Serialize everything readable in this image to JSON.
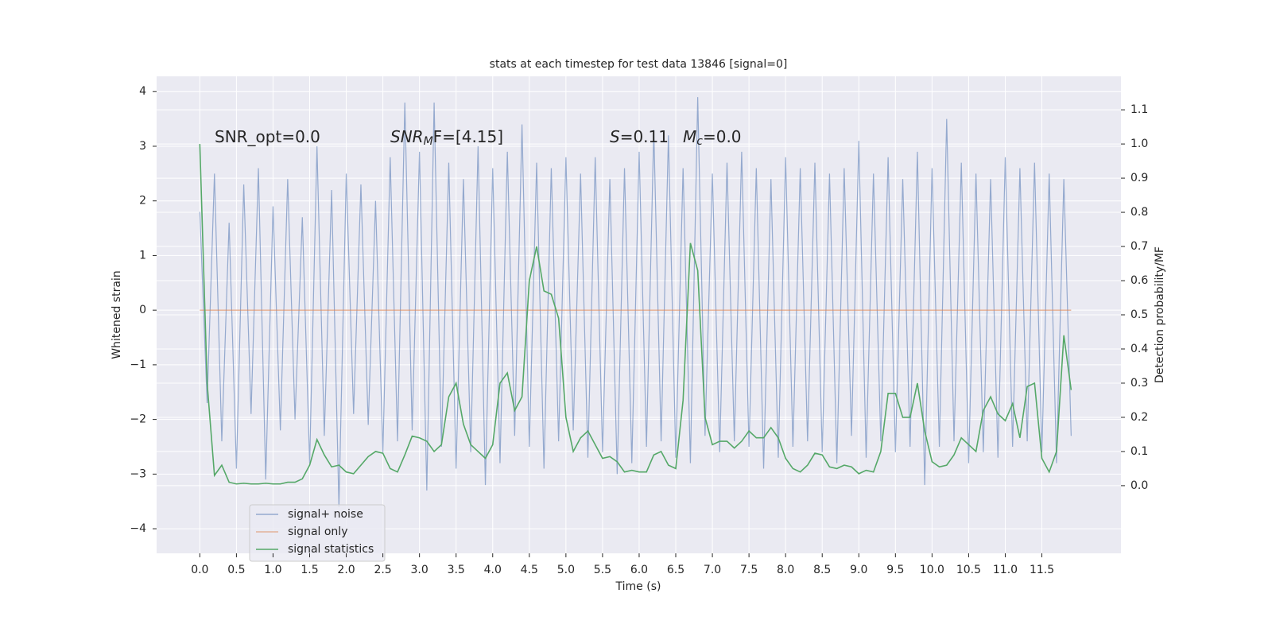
{
  "chart_data": {
    "type": "line",
    "title": "stats at each timestep for test data 13846 [signal=0]",
    "xlabel": "Time (s)",
    "ylabel": "Whitened strain",
    "y2label": "Detection probability/MF",
    "annotations": [
      [
        "SNR_opt=0.0"
      ],
      [
        "SNR",
        "M",
        "F=[4.15]"
      ],
      [
        "S",
        "=0.11"
      ],
      [
        "M",
        "c",
        "=0.0"
      ]
    ],
    "xlim": [
      -0.59,
      12.58
    ],
    "ylim": [
      -4.45,
      4.28
    ],
    "y2lim": [
      -0.198,
      1.198
    ],
    "xticks": [
      {
        "value": 0,
        "label": "0.0"
      },
      0.5,
      {
        "value": 1,
        "label": "1.0"
      },
      1.5,
      {
        "value": 2,
        "label": "2.0"
      },
      2.5,
      {
        "value": 3,
        "label": "3.0"
      },
      3.5,
      {
        "value": 4,
        "label": "4.0"
      },
      4.5,
      {
        "value": 5,
        "label": "5.0"
      },
      5.5,
      {
        "value": 6,
        "label": "6.0"
      },
      6.5,
      {
        "value": 7,
        "label": "7.0"
      },
      7.5,
      {
        "value": 8,
        "label": "8.0"
      },
      8.5,
      {
        "value": 9,
        "label": "9.0"
      },
      9.5,
      {
        "value": 10,
        "label": "10.0"
      },
      10.5,
      {
        "value": 11,
        "label": "11.0"
      },
      11.5
    ],
    "yticks": [
      {
        "value": -4,
        "label": "−4"
      },
      {
        "value": -3,
        "label": "−3"
      },
      {
        "value": -2,
        "label": "−2"
      },
      {
        "value": -1,
        "label": "−1"
      },
      0,
      1,
      2,
      3,
      4
    ],
    "y2ticks": [
      {
        "value": 0,
        "label": "0.0"
      },
      0.1,
      0.2,
      0.3,
      0.4,
      0.5,
      0.6,
      0.7,
      0.8,
      0.9,
      {
        "value": 1,
        "label": "1.0"
      },
      1.1
    ],
    "grid": true,
    "legend": "lower left",
    "x": [
      0,
      0.1,
      0.2,
      0.3,
      0.4,
      0.5,
      0.6,
      0.7,
      0.8,
      0.9,
      1,
      1.1,
      1.2,
      1.3,
      1.4,
      1.5,
      1.6,
      1.7,
      1.8,
      1.9,
      2,
      2.1,
      2.2,
      2.3,
      2.4,
      2.5,
      2.6,
      2.7,
      2.8,
      2.9,
      3,
      3.1,
      3.2,
      3.3,
      3.4,
      3.5,
      3.6,
      3.7,
      3.8,
      3.9,
      4,
      4.1,
      4.2,
      4.3,
      4.4,
      4.5,
      4.6,
      4.7,
      4.8,
      4.9,
      5,
      5.1,
      5.2,
      5.3,
      5.4,
      5.5,
      5.6,
      5.7,
      5.8,
      5.9,
      6,
      6.1,
      6.2,
      6.3,
      6.4,
      6.5,
      6.6,
      6.7,
      6.8,
      6.9,
      7,
      7.1,
      7.2,
      7.3,
      7.4,
      7.5,
      7.6,
      7.7,
      7.8,
      7.9,
      8,
      8.1,
      8.2,
      8.3,
      8.4,
      8.5,
      8.6,
      8.7,
      8.8,
      8.9,
      9,
      9.1,
      9.2,
      9.3,
      9.4,
      9.5,
      9.6,
      9.7,
      9.8,
      9.9,
      10,
      10.1,
      10.2,
      10.3,
      10.4,
      10.5,
      10.6,
      10.7,
      10.8,
      10.9,
      11,
      11.1,
      11.2,
      11.3,
      11.4,
      11.5,
      11.6,
      11.7,
      11.8,
      11.9
    ],
    "series": [
      {
        "name": "signal+ noise",
        "color": "#4c72b0",
        "values": [
          1.8,
          -1.7,
          2.5,
          -2.4,
          1.6,
          -2.9,
          2.3,
          -1.9,
          2.6,
          -3.1,
          1.9,
          -2.2,
          2.4,
          -2.0,
          1.7,
          -2.8,
          3.0,
          -2.3,
          2.2,
          -3.6,
          2.5,
          -1.9,
          2.3,
          -2.1,
          2.0,
          -2.6,
          2.8,
          -2.4,
          3.8,
          -2.2,
          2.9,
          -3.3,
          3.8,
          -2.5,
          2.7,
          -2.9,
          2.4,
          -2.6,
          3.0,
          -3.2,
          2.6,
          -2.8,
          2.9,
          -2.3,
          3.4,
          -2.5,
          2.7,
          -2.9,
          2.6,
          -2.4,
          2.8,
          -2.2,
          2.5,
          -2.7,
          2.8,
          -2.6,
          2.4,
          -3.0,
          2.6,
          -2.8,
          2.9,
          -2.5,
          3.3,
          -2.4,
          3.2,
          -2.7,
          2.6,
          -2.8,
          3.9,
          -2.3,
          2.5,
          -2.6,
          2.7,
          -2.4,
          2.9,
          -2.5,
          2.6,
          -2.9,
          2.4,
          -2.7,
          2.8,
          -2.5,
          2.6,
          -2.4,
          2.7,
          -2.6,
          2.5,
          -2.8,
          2.6,
          -2.3,
          3.1,
          -2.7,
          2.5,
          -2.4,
          2.8,
          -2.6,
          2.4,
          -2.5,
          2.9,
          -3.2,
          2.6,
          -2.5,
          3.5,
          -2.4,
          2.7,
          -2.8,
          2.5,
          -2.6,
          2.4,
          -2.7,
          2.8,
          -2.5,
          2.6,
          -2.4,
          2.7,
          -2.6,
          2.5,
          -2.8,
          2.4,
          -2.3
        ]
      },
      {
        "name": "signal only",
        "color": "#dd8452",
        "values": [
          0,
          0,
          0,
          0,
          0,
          0,
          0,
          0,
          0,
          0,
          0,
          0,
          0,
          0,
          0,
          0,
          0,
          0,
          0,
          0,
          0,
          0,
          0,
          0,
          0,
          0,
          0,
          0,
          0,
          0,
          0,
          0,
          0,
          0,
          0,
          0,
          0,
          0,
          0,
          0,
          0,
          0,
          0,
          0,
          0,
          0,
          0,
          0,
          0,
          0,
          0,
          0,
          0,
          0,
          0,
          0,
          0,
          0,
          0,
          0,
          0,
          0,
          0,
          0,
          0,
          0,
          0,
          0,
          0,
          0,
          0,
          0,
          0,
          0,
          0,
          0,
          0,
          0,
          0,
          0,
          0,
          0,
          0,
          0,
          0,
          0,
          0,
          0,
          0,
          0,
          0,
          0,
          0,
          0,
          0,
          0,
          0,
          0,
          0,
          0,
          0,
          0,
          0,
          0,
          0,
          0,
          0,
          0,
          0,
          0,
          0,
          0,
          0,
          0,
          0,
          0,
          0,
          0,
          0,
          0
        ]
      },
      {
        "name": "signal statistics",
        "color": "#55a868",
        "axis": "y2",
        "values": [
          1.0,
          0.3,
          0.03,
          0.06,
          0.01,
          0.005,
          0.007,
          0.005,
          0.005,
          0.007,
          0.005,
          0.005,
          0.01,
          0.01,
          0.02,
          0.06,
          0.135,
          0.09,
          0.055,
          0.06,
          0.04,
          0.035,
          0.06,
          0.085,
          0.1,
          0.095,
          0.05,
          0.04,
          0.09,
          0.145,
          0.14,
          0.13,
          0.1,
          0.12,
          0.26,
          0.3,
          0.18,
          0.12,
          0.1,
          0.08,
          0.12,
          0.3,
          0.33,
          0.22,
          0.26,
          0.6,
          0.7,
          0.57,
          0.56,
          0.49,
          0.2,
          0.1,
          0.14,
          0.16,
          0.12,
          0.08,
          0.085,
          0.07,
          0.04,
          0.045,
          0.04,
          0.04,
          0.09,
          0.1,
          0.06,
          0.05,
          0.25,
          0.71,
          0.63,
          0.2,
          0.12,
          0.13,
          0.13,
          0.11,
          0.13,
          0.16,
          0.14,
          0.14,
          0.17,
          0.14,
          0.08,
          0.05,
          0.04,
          0.06,
          0.095,
          0.09,
          0.055,
          0.05,
          0.06,
          0.055,
          0.035,
          0.045,
          0.04,
          0.1,
          0.27,
          0.27,
          0.2,
          0.2,
          0.3,
          0.16,
          0.07,
          0.055,
          0.06,
          0.09,
          0.14,
          0.12,
          0.1,
          0.22,
          0.26,
          0.21,
          0.19,
          0.24,
          0.14,
          0.29,
          0.3,
          0.08,
          0.04,
          0.1,
          0.44,
          0.28
        ]
      }
    ]
  }
}
